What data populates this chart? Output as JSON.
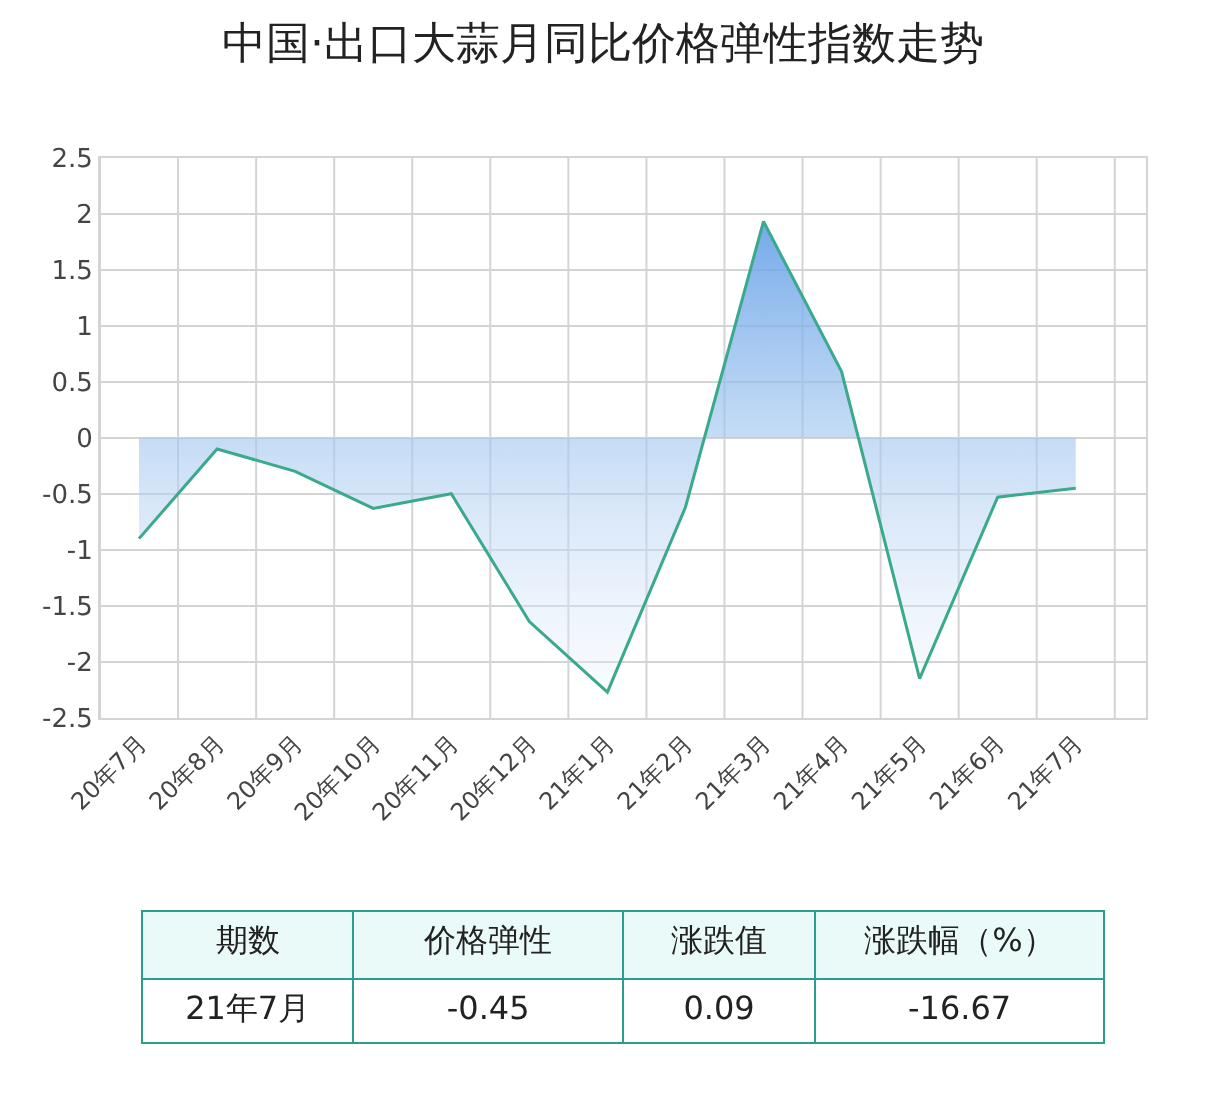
{
  "chart_data": {
    "type": "area",
    "title": "中国·出口大蒜月同比价格弹性指数走势",
    "categories": [
      "20年7月",
      "20年8月",
      "20年9月",
      "20年10月",
      "20年11月",
      "20年12月",
      "21年1月",
      "21年2月",
      "21年3月",
      "21年4月",
      "21年5月",
      "21年6月",
      "21年7月"
    ],
    "series": [
      {
        "color": "#3aa98c",
        "values": [
          -0.9,
          -0.1,
          -0.3,
          -0.63,
          -0.5,
          -1.64,
          -2.27,
          -0.62,
          1.93,
          0.59,
          -2.15,
          -0.53,
          -0.45
        ]
      }
    ],
    "ylim": [
      -2.5,
      2.5
    ],
    "yticks": [
      -2.5,
      -2,
      -1.5,
      -1,
      -0.5,
      0,
      0.5,
      1,
      1.5,
      2,
      2.5
    ],
    "grid": true,
    "annotations": [
      "期数",
      "价格弹性",
      "涨跌值",
      "涨跌幅（%）",
      "21年7月",
      "-0.45",
      "0.09",
      "-16.67"
    ]
  }
}
